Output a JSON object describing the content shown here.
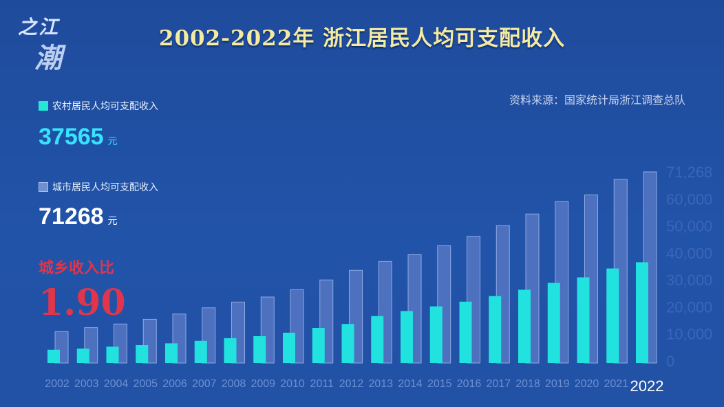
{
  "logo": {
    "line1": "之江",
    "line2": "潮"
  },
  "title": "2002-2022年 浙江居民人均可支配收入",
  "source": "资料来源：国家统计局浙江调查总队",
  "rural": {
    "label": "农村居民人均可支配收入",
    "value": "37565",
    "unit": "元",
    "color": "#27e6d6"
  },
  "urban": {
    "label": "城市居民人均可支配收入",
    "value": "71268",
    "unit": "元",
    "color": "#6f8fcf"
  },
  "ratio": {
    "label": "城乡收入比",
    "value": "1.90",
    "color": "#e0354a"
  },
  "chart_data": {
    "type": "bar",
    "title": "2002-2022年 浙江居民人均可支配收入",
    "categories": [
      "2002",
      "2003",
      "2004",
      "2005",
      "2006",
      "2007",
      "2008",
      "2009",
      "2010",
      "2011",
      "2012",
      "2013",
      "2014",
      "2015",
      "2016",
      "2017",
      "2018",
      "2019",
      "2020",
      "2021",
      "2022"
    ],
    "series": [
      {
        "name": "农村居民人均可支配收入",
        "values": [
          4940,
          5389,
          6096,
          6660,
          7335,
          8265,
          9258,
          10007,
          11303,
          13071,
          14552,
          17494,
          19373,
          21125,
          22866,
          24956,
          27302,
          29876,
          31930,
          35247,
          37565
        ]
      },
      {
        "name": "城市居民人均可支配收入",
        "values": [
          11716,
          13180,
          14546,
          16294,
          18265,
          20574,
          22727,
          24611,
          27359,
          30971,
          34550,
          37851,
          40393,
          43714,
          47237,
          51261,
          55574,
          60182,
          62699,
          68487,
          71268
        ]
      }
    ],
    "yticks": [
      "0",
      "10,000",
      "20,000",
      "30,000",
      "40,000",
      "50,000",
      "60,000",
      "71,268"
    ],
    "ytick_values": [
      0,
      10000,
      20000,
      30000,
      40000,
      50000,
      60000,
      71268
    ],
    "ylim": [
      0,
      71268
    ],
    "xlabel": "",
    "ylabel": "",
    "legend": "top-left",
    "highlight_category": "2022"
  }
}
